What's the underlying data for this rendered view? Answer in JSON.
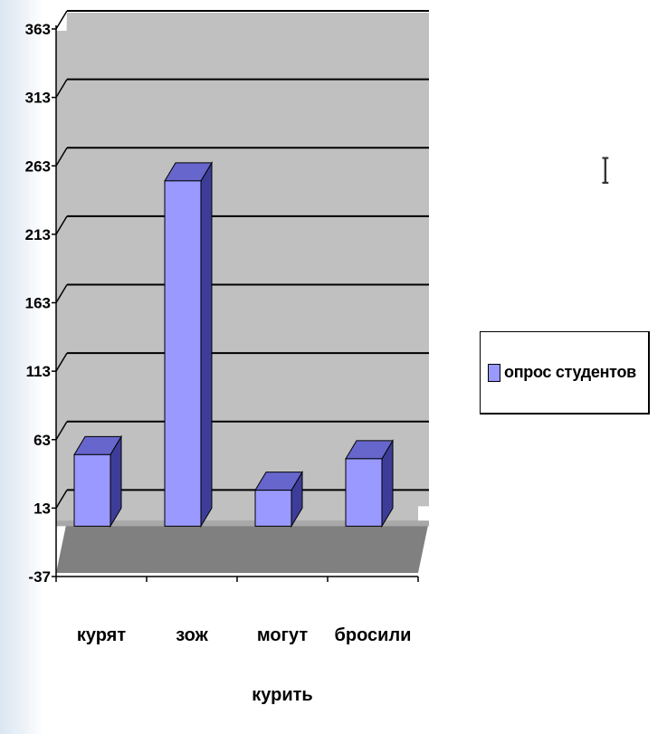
{
  "chart_data": {
    "type": "bar",
    "style": "3d-clustered-column",
    "categories": [
      "курят",
      "зож",
      "могут\nкурить",
      "бросили"
    ],
    "series": [
      {
        "name": "опрос студентов",
        "values": [
          56,
          256,
          30,
          53
        ]
      }
    ],
    "ylim": [
      -37,
      363
    ],
    "yticks": [
      "363",
      "313",
      "263",
      "213",
      "163",
      "113",
      "63",
      "13",
      "-37"
    ],
    "grid": true,
    "legend": "right"
  },
  "legend": {
    "label": "опрос студентов"
  },
  "colors": {
    "bar_front": "#9999ff",
    "bar_top": "#6666cc",
    "bar_side": "#3d3d99",
    "wall": "#c0c0c0",
    "floor": "#808080",
    "gridline": "#000000"
  },
  "icons": {
    "cursor": "text-cursor-icon"
  }
}
